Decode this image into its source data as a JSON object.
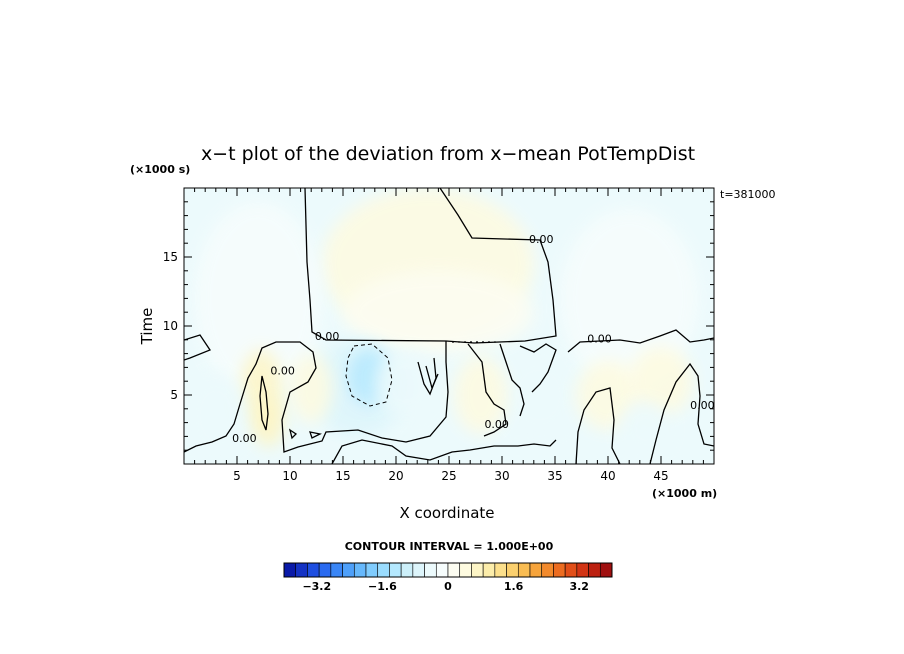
{
  "chart_data": {
    "type": "heatmap",
    "title": "x−t plot of the deviation from x−mean PotTempDist",
    "time_stamp": "t=381000",
    "xlabel": "X coordinate",
    "ylabel": "Time",
    "x_unit": "(×1000 m)",
    "y_unit": "(×1000 s)",
    "xlim": [
      0,
      50
    ],
    "ylim": [
      0,
      20
    ],
    "x_ticks": [
      5,
      10,
      15,
      20,
      25,
      30,
      35,
      40,
      45
    ],
    "y_ticks": [
      5,
      10,
      15
    ],
    "contour_interval": "CONTOUR INTERVAL = 1.000E+00",
    "contour_labels": [
      {
        "text": "0.00",
        "x": 13.5,
        "y": 9.0
      },
      {
        "text": "0.00",
        "x": 33.7,
        "y": 16.0
      },
      {
        "text": "0.00",
        "x": 39.2,
        "y": 8.8
      },
      {
        "text": "0.00",
        "x": 9.3,
        "y": 6.5
      },
      {
        "text": "0.00",
        "x": 29.5,
        "y": 2.6
      },
      {
        "text": "0.00",
        "x": 5.7,
        "y": 1.6
      },
      {
        "text": "0.00",
        "x": 48.9,
        "y": 4.0
      }
    ],
    "colorbar": {
      "range": [
        -4,
        4
      ],
      "tick_values": [
        -3.2,
        -1.6,
        0,
        1.6,
        3.2
      ],
      "tick_labels": [
        "−3.2",
        "−1.6",
        "0",
        "1.6",
        "3.2"
      ],
      "colors": [
        "#0a1aa8",
        "#1432c4",
        "#1e4ee0",
        "#2a6af0",
        "#3a86f6",
        "#4ea0fa",
        "#66b8fc",
        "#80ccfe",
        "#9adcfe",
        "#b4e8fe",
        "#cceff9",
        "#ddf5fb",
        "#ecfafc",
        "#f7fdfd",
        "#fdfdf2",
        "#fefbe0",
        "#fdf5c6",
        "#fcedaa",
        "#fce08c",
        "#fbd06e",
        "#f8bc52",
        "#f6a43c",
        "#f28a2c",
        "#ec6c20",
        "#e14e18",
        "#d23414",
        "#bc2010",
        "#a01010"
      ]
    },
    "features": [
      {
        "kind": "warm",
        "x": 23.0,
        "y": 14.5,
        "rx": 10.0,
        "ry": 5.5,
        "value": 0.3
      },
      {
        "kind": "warm",
        "x": 24.0,
        "y": 11.0,
        "rx": 9.0,
        "ry": 3.0,
        "value": 0.25
      },
      {
        "kind": "cool",
        "x": 7.0,
        "y": 12.0,
        "rx": 6.0,
        "ry": 7.0,
        "value": -0.25
      },
      {
        "kind": "cool",
        "x": 42.0,
        "y": 12.0,
        "rx": 6.5,
        "ry": 6.5,
        "value": -0.25
      },
      {
        "kind": "cool",
        "x": 16.5,
        "y": 5.5,
        "rx": 4.5,
        "ry": 3.5,
        "value": -0.8
      },
      {
        "kind": "cool",
        "x": 17.5,
        "y": 6.3,
        "rx": 2.0,
        "ry": 2.0,
        "value": -1.4
      },
      {
        "kind": "cool",
        "x": 21.0,
        "y": 5.8,
        "rx": 3.0,
        "ry": 2.5,
        "value": -0.5
      },
      {
        "kind": "warm",
        "x": 7.3,
        "y": 5.3,
        "rx": 2.0,
        "ry": 3.0,
        "value": 0.8
      },
      {
        "kind": "warm",
        "x": 8.0,
        "y": 3.0,
        "rx": 1.4,
        "ry": 1.8,
        "value": 0.6
      },
      {
        "kind": "cool",
        "x": 3.0,
        "y": 3.5,
        "rx": 3.0,
        "ry": 3.0,
        "value": -0.45
      },
      {
        "kind": "cool",
        "x": 33.5,
        "y": 5.0,
        "rx": 3.5,
        "ry": 3.0,
        "value": -0.5
      },
      {
        "kind": "warm",
        "x": 28.0,
        "y": 5.0,
        "rx": 2.5,
        "ry": 2.8,
        "value": 0.45
      },
      {
        "kind": "warm",
        "x": 40.0,
        "y": 5.0,
        "rx": 3.0,
        "ry": 2.5,
        "value": 0.45
      },
      {
        "kind": "warm",
        "x": 45.0,
        "y": 6.0,
        "rx": 3.0,
        "ry": 2.5,
        "value": 0.3
      },
      {
        "kind": "cool",
        "x": 43.5,
        "y": 2.5,
        "rx": 2.5,
        "ry": 2.0,
        "value": -0.4
      },
      {
        "kind": "warm",
        "x": 12.0,
        "y": 5.5,
        "rx": 2.0,
        "ry": 2.5,
        "value": 0.3
      }
    ]
  }
}
